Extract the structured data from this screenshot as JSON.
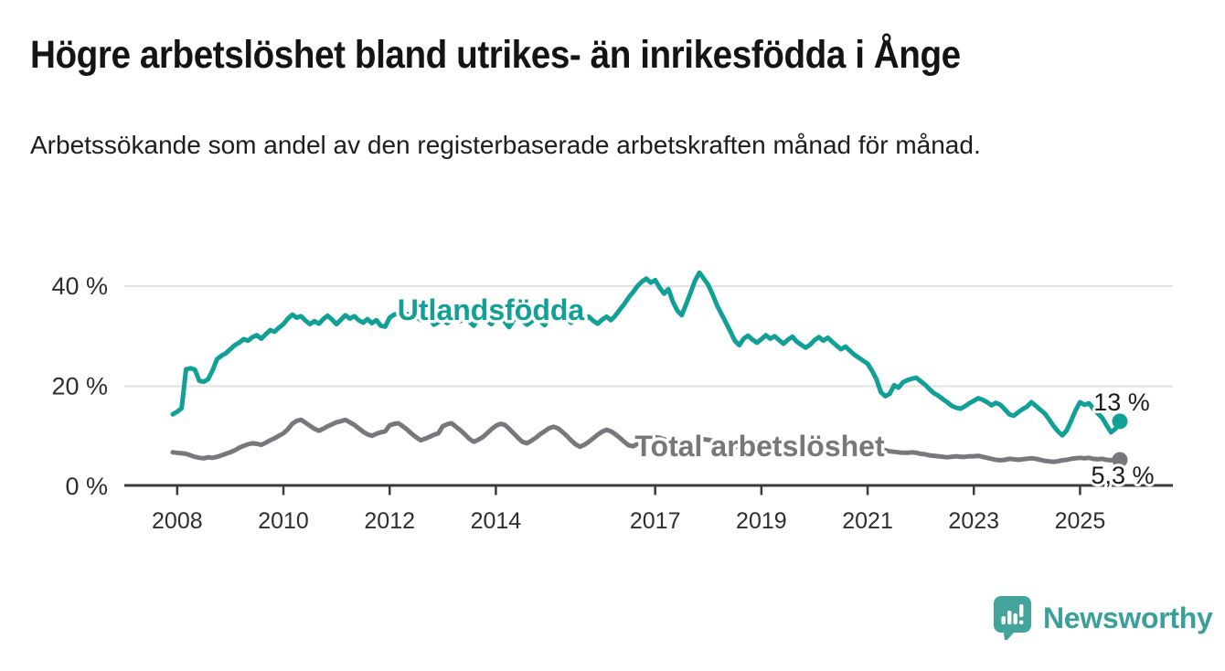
{
  "header": {
    "title": "Högre arbetslöshet bland utrikes- än inrikesfödda i Ånge",
    "subtitle": "Arbetssökande som andel av den registerbaserade arbetskraften månad för månad."
  },
  "footer": {
    "brand": "Newsworthy",
    "logo_icon": "newsworthy-speech-bubble-bar-chart-icon",
    "brand_color": "#3b9f9a"
  },
  "colors": {
    "background": "#ffffff",
    "title_text": "#141414",
    "body_text": "#1d1d1d",
    "grid": "#e2e2e2",
    "axis": "#3b3b3b",
    "tick_label": "#2e2e2e",
    "end_label_text": "#1b1b1b",
    "series_foreign_born": "#10a096",
    "series_total": "#78787c"
  },
  "chart_data": {
    "type": "line",
    "unit": "%",
    "frequency": "monthly",
    "period_start": "2007-12",
    "period_end": "2025-10",
    "grid": "horizontal",
    "legend_position": "inline-labels",
    "y_axis": {
      "tick_labels": [
        "0 %",
        "20 %",
        "40 %"
      ],
      "tick_values": [
        0,
        20,
        40
      ],
      "range": [
        0,
        44
      ]
    },
    "x_axis": {
      "tick_years": [
        2008,
        2010,
        2012,
        2014,
        2017,
        2019,
        2021,
        2023,
        2025
      ]
    },
    "series": [
      {
        "name": "Utlandsfödda",
        "color": "#10a096",
        "end_value": 13,
        "end_label": "13 %",
        "values": [
          14.4,
          14.9,
          15.6,
          23.4,
          23.6,
          23.3,
          21.1,
          20.9,
          21.4,
          23.2,
          25.4,
          26.1,
          26.6,
          27.4,
          28.2,
          28.7,
          29.4,
          29.1,
          29.8,
          30.2,
          29.5,
          30.4,
          31.2,
          30.9,
          31.7,
          32.4,
          33.5,
          34.3,
          33.7,
          34.0,
          33.1,
          32.4,
          33.0,
          32.5,
          33.4,
          34.1,
          33.3,
          32.4,
          33.3,
          34.2,
          33.5,
          34.0,
          33.2,
          32.7,
          33.4,
          32.6,
          33.2,
          32.1,
          31.9,
          33.7,
          34.3,
          34.6,
          33.9,
          34.4,
          33.6,
          33.9,
          33.2,
          34.1,
          33.5,
          32.3,
          32.8,
          33.3,
          32.6,
          33.1,
          33.8,
          33.0,
          33.6,
          32.9,
          32.1,
          33.4,
          34.2,
          33.1,
          32.4,
          33.5,
          34.1,
          32.9,
          31.8,
          33.2,
          33.9,
          33.1,
          32.3,
          32.9,
          33.7,
          33.0,
          32.2,
          33.8,
          34.5,
          33.7,
          34.3,
          33.5,
          32.7,
          33.4,
          34.0,
          33.2,
          33.9,
          33.1,
          32.5,
          33.3,
          33.9,
          33.2,
          34.1,
          35.3,
          36.4,
          37.7,
          38.8,
          40.0,
          40.9,
          41.5,
          40.7,
          41.2,
          39.7,
          38.5,
          39.4,
          36.9,
          35.1,
          34.2,
          36.4,
          38.7,
          41.1,
          42.7,
          41.5,
          40.2,
          38.3,
          36.1,
          34.4,
          32.7,
          30.9,
          29.1,
          28.2,
          29.5,
          30.1,
          29.3,
          28.7,
          29.4,
          30.2,
          29.5,
          30.0,
          29.2,
          28.5,
          29.3,
          29.9,
          28.9,
          28.3,
          27.7,
          28.3,
          29.2,
          29.8,
          29.1,
          29.7,
          28.9,
          28.1,
          27.4,
          27.9,
          27.1,
          26.3,
          25.7,
          25.1,
          24.5,
          23.1,
          21.4,
          18.8,
          18.0,
          18.5,
          20.2,
          19.7,
          20.8,
          21.2,
          21.5,
          21.7,
          21.0,
          20.3,
          19.4,
          18.6,
          18.1,
          17.4,
          16.8,
          16.1,
          15.7,
          15.5,
          16.0,
          16.6,
          17.1,
          17.6,
          17.3,
          16.8,
          16.2,
          16.7,
          16.3,
          15.4,
          14.4,
          14.1,
          14.8,
          15.4,
          15.9,
          16.8,
          16.1,
          15.3,
          14.6,
          13.4,
          12.1,
          11.0,
          10.2,
          11.2,
          13.1,
          15.2,
          16.8,
          16.3,
          16.6,
          15.5,
          14.6,
          13.7,
          12.2,
          10.8,
          11.5,
          13.0
        ]
      },
      {
        "name": "Total arbetslöshet",
        "color": "#78787c",
        "end_value": 5.3,
        "end_label": "5,3 %",
        "values": [
          6.8,
          6.7,
          6.6,
          6.5,
          6.2,
          5.9,
          5.7,
          5.6,
          5.8,
          5.7,
          5.9,
          6.2,
          6.5,
          6.8,
          7.2,
          7.7,
          8.1,
          8.4,
          8.6,
          8.5,
          8.3,
          8.7,
          9.2,
          9.6,
          10.1,
          10.6,
          11.4,
          12.5,
          13.1,
          13.3,
          12.7,
          12.1,
          11.5,
          11.1,
          11.5,
          12.0,
          12.4,
          12.8,
          13.0,
          13.3,
          12.8,
          12.3,
          11.6,
          10.9,
          10.4,
          10.1,
          10.5,
          10.8,
          11.0,
          12.2,
          12.5,
          12.6,
          12.0,
          11.3,
          10.5,
          9.8,
          9.2,
          9.5,
          9.9,
          10.3,
          10.6,
          12.0,
          12.4,
          12.6,
          11.9,
          11.2,
          10.4,
          9.5,
          8.9,
          9.3,
          9.8,
          10.6,
          11.4,
          12.1,
          12.5,
          12.3,
          11.5,
          10.6,
          9.7,
          8.9,
          8.6,
          9.1,
          9.7,
          10.4,
          11.0,
          11.6,
          11.9,
          11.6,
          10.9,
          10.1,
          9.2,
          8.4,
          7.9,
          8.3,
          8.9,
          9.6,
          10.3,
          10.9,
          11.3,
          11.0,
          10.4,
          9.7,
          8.9,
          8.2,
          8.0,
          8.5,
          9.0,
          9.4,
          9.7,
          9.8,
          9.7,
          9.4,
          9.0,
          8.6,
          8.3,
          8.2,
          8.4,
          8.7,
          9.0,
          9.2,
          9.4,
          9.3,
          9.1,
          8.9,
          8.6,
          8.3,
          8.0,
          7.8,
          7.9,
          8.1,
          8.4,
          8.6,
          8.8,
          8.6,
          8.5,
          8.3,
          8.0,
          7.7,
          7.4,
          7.2,
          7.3,
          7.5,
          7.7,
          7.9,
          8.0,
          8.2,
          8.4,
          8.6,
          8.9,
          9.0,
          8.8,
          8.6,
          8.4,
          8.3,
          8.2,
          8.1,
          8.0,
          7.9,
          7.8,
          7.6,
          7.4,
          7.2,
          7.0,
          6.9,
          6.8,
          6.7,
          6.7,
          6.8,
          6.7,
          6.5,
          6.4,
          6.2,
          6.1,
          6.0,
          5.9,
          5.8,
          5.9,
          6.0,
          5.9,
          5.9,
          6.0,
          6.0,
          6.1,
          5.9,
          5.7,
          5.5,
          5.3,
          5.2,
          5.3,
          5.5,
          5.4,
          5.3,
          5.4,
          5.5,
          5.6,
          5.5,
          5.3,
          5.1,
          5.0,
          4.9,
          5.0,
          5.2,
          5.3,
          5.5,
          5.6,
          5.7,
          5.6,
          5.7,
          5.5,
          5.4,
          5.5,
          5.3,
          5.2,
          5.4,
          5.3
        ]
      }
    ]
  }
}
